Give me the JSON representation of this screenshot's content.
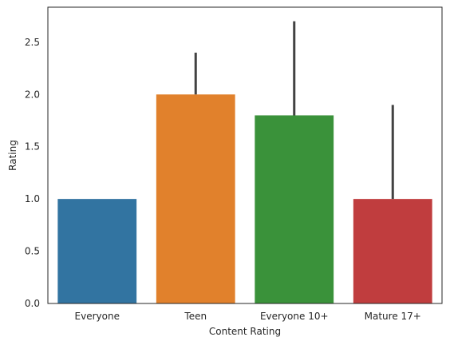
{
  "chart_data": {
    "type": "bar",
    "title": "",
    "xlabel": "Content Rating",
    "ylabel": "Rating",
    "categories": [
      "Everyone",
      "Teen",
      "Everyone 10+",
      "Mature 17+"
    ],
    "values": [
      1.0,
      2.0,
      1.8,
      1.0
    ],
    "error_bars": [
      {
        "low": 1.0,
        "high": 1.0
      },
      {
        "low": 2.0,
        "high": 2.4
      },
      {
        "low": 1.8,
        "high": 2.7
      },
      {
        "low": 1.0,
        "high": 1.9
      }
    ],
    "colors": [
      "#3274a1",
      "#e1812c",
      "#3a923a",
      "#c03d3e"
    ],
    "error_color": "#424242",
    "ylim": [
      0,
      2.835
    ],
    "yticks": [
      0.0,
      0.5,
      1.0,
      1.5,
      2.0,
      2.5
    ],
    "ytick_labels": [
      "0.0",
      "0.5",
      "1.0",
      "1.5",
      "2.0",
      "2.5"
    ],
    "grid": false,
    "legend": "none"
  }
}
